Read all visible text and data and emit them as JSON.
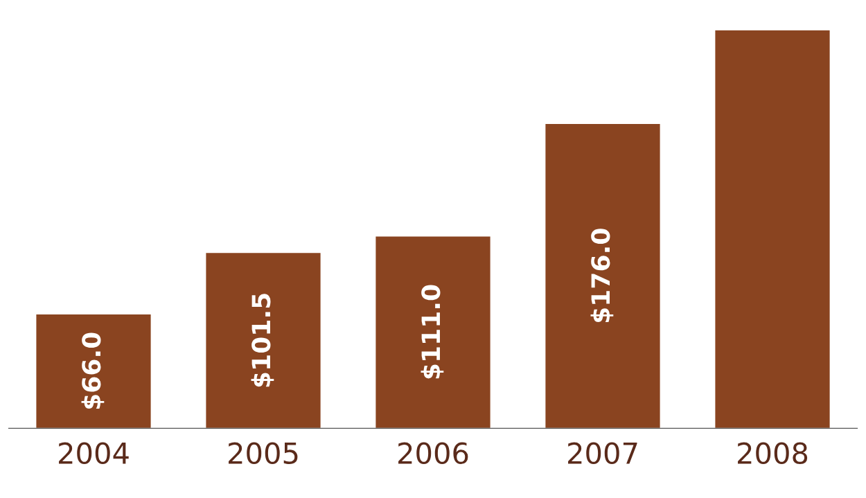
{
  "chart_data": {
    "type": "bar",
    "categories": [
      "2004",
      "2005",
      "2006",
      "2007",
      "2008"
    ],
    "values": [
      66.0,
      101.5,
      111.0,
      176.0,
      230
    ],
    "value_labels": [
      "$66.0",
      "$101.5",
      "$111.0",
      "$176.0",
      null
    ],
    "color": "#8a4420",
    "tick_labels": "x",
    "grid": false,
    "legend": false
  }
}
